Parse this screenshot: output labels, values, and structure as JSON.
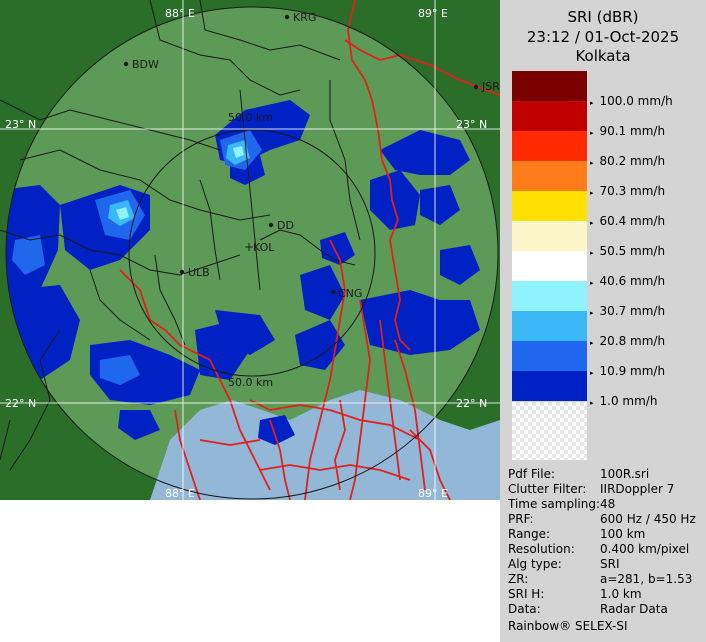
{
  "map": {
    "longitude_labels": [
      "88° E",
      "89° E"
    ],
    "latitude_labels": [
      "23° N",
      "22° N"
    ],
    "range_ring_labels": [
      "50.0 km",
      "50.0 km"
    ],
    "places": [
      "KRG",
      "BDW",
      "JSR",
      "DD",
      "KOL",
      "ULB",
      "CNG"
    ]
  },
  "panel": {
    "product": "SRI (dBR)",
    "datetime": "23:12 / 01-Oct-2025",
    "station": "Kolkata"
  },
  "legend": {
    "colors": [
      "#7a0000",
      "#c10000",
      "#ff2a00",
      "#ff7c1a",
      "#ffe000",
      "#fbf6c8",
      "#ffffff",
      "#8ef2ff",
      "#3bb7f5",
      "#1f68ee",
      "#0022c4"
    ],
    "labels": [
      "100.0 mm/h",
      "90.1 mm/h",
      "80.2 mm/h",
      "70.3 mm/h",
      "60.4 mm/h",
      "50.5 mm/h",
      "40.6 mm/h",
      "30.7 mm/h",
      "20.8 mm/h",
      "10.9 mm/h",
      "1.0 mm/h"
    ]
  },
  "info": [
    {
      "key": "Pdf File:",
      "value": "100R.sri"
    },
    {
      "key": "Clutter Filter:",
      "value": "IIRDoppler 7"
    },
    {
      "key": "Time sampling:",
      "value": "48"
    },
    {
      "key": "PRF:",
      "value": "600 Hz / 450 Hz"
    },
    {
      "key": "Range:",
      "value": "100 km"
    },
    {
      "key": "Resolution:",
      "value": "0.400 km/pixel"
    },
    {
      "key": "Alg type:",
      "value": "SRI"
    },
    {
      "key": "ZR:",
      "value": "a=281, b=1.53"
    },
    {
      "key": "SRI H:",
      "value": "1.0 km"
    },
    {
      "key": "Data:",
      "value": "Radar Data"
    }
  ],
  "brand": "Rainbow® SELEX-SI"
}
